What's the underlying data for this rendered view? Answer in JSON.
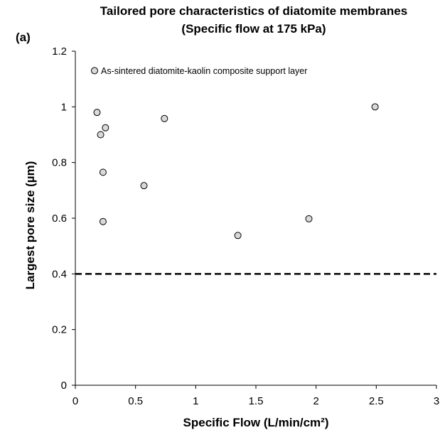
{
  "chart_data": {
    "type": "scatter",
    "title_line1": "Tailored pore characteristics of diatomite membranes",
    "title_line2": "(Specific flow at 175 kPa)",
    "panel_label": "(a)",
    "xlabel": "Specific Flow (L/min/cm²)",
    "ylabel": "Largest pore size (µm)",
    "xlim": [
      0,
      3
    ],
    "ylim": [
      0,
      1.2
    ],
    "xticks": [
      "0",
      "0.5",
      "1",
      "1.5",
      "2",
      "2.5",
      "3"
    ],
    "xtick_values": [
      0,
      0.5,
      1,
      1.5,
      2,
      2.5,
      3
    ],
    "yticks": [
      "0",
      "0.2",
      "0.4",
      "0.6",
      "0.8",
      "1",
      "1.2"
    ],
    "ytick_values": [
      0,
      0.2,
      0.4,
      0.6,
      0.8,
      1,
      1.2
    ],
    "grid": false,
    "legend_position": "top-left",
    "series": [
      {
        "name": "As-sintered diatomite-kaolin composite support layer",
        "marker": "open-circle",
        "points": [
          {
            "x": 0.18,
            "y": 0.98
          },
          {
            "x": 0.21,
            "y": 0.9
          },
          {
            "x": 0.25,
            "y": 0.925
          },
          {
            "x": 0.23,
            "y": 0.765
          },
          {
            "x": 0.23,
            "y": 0.588
          },
          {
            "x": 0.57,
            "y": 0.717
          },
          {
            "x": 0.74,
            "y": 0.958
          },
          {
            "x": 1.35,
            "y": 0.538
          },
          {
            "x": 1.94,
            "y": 0.598
          },
          {
            "x": 2.49,
            "y": 1.0
          }
        ]
      }
    ],
    "reference_line": {
      "y": 0.4,
      "style": "dashed"
    },
    "colors": {
      "marker_fill": "#d9d9d9",
      "marker_stroke": "#000000",
      "axis": "#000000"
    }
  }
}
